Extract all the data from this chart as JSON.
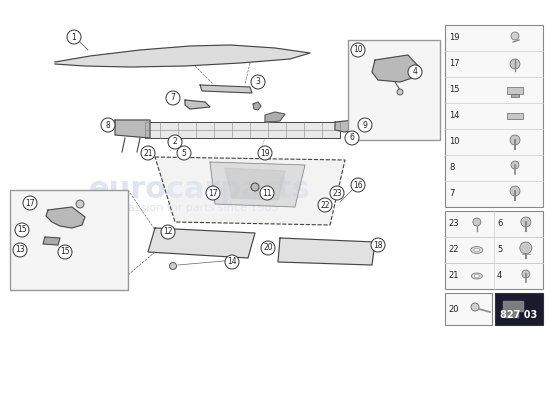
{
  "bg_color": "#ffffff",
  "watermark_color": "#c8d4e8",
  "part_number_box": "827 03",
  "part_number_box_color": "#1a1a2e",
  "part_number_text_color": "#ffffff",
  "right_panel_items": [
    {
      "num": "19"
    },
    {
      "num": "17"
    },
    {
      "num": "15"
    },
    {
      "num": "14"
    },
    {
      "num": "10"
    },
    {
      "num": "8"
    },
    {
      "num": "7"
    }
  ],
  "right_panel_bottom_items": [
    {
      "num": "23",
      "col": 0,
      "row": 0
    },
    {
      "num": "6",
      "col": 1,
      "row": 0
    },
    {
      "num": "22",
      "col": 0,
      "row": 1
    },
    {
      "num": "5",
      "col": 1,
      "row": 1
    },
    {
      "num": "21",
      "col": 0,
      "row": 2
    },
    {
      "num": "4",
      "col": 1,
      "row": 2
    }
  ],
  "label_circle_color": "#ffffff",
  "label_circle_edge": "#333333",
  "line_color": "#666666",
  "part_outline_color": "#444444",
  "box_border_color": "#999999",
  "part_fill_color": "#d8d8d8",
  "part_fill_light": "#e8e8e8"
}
